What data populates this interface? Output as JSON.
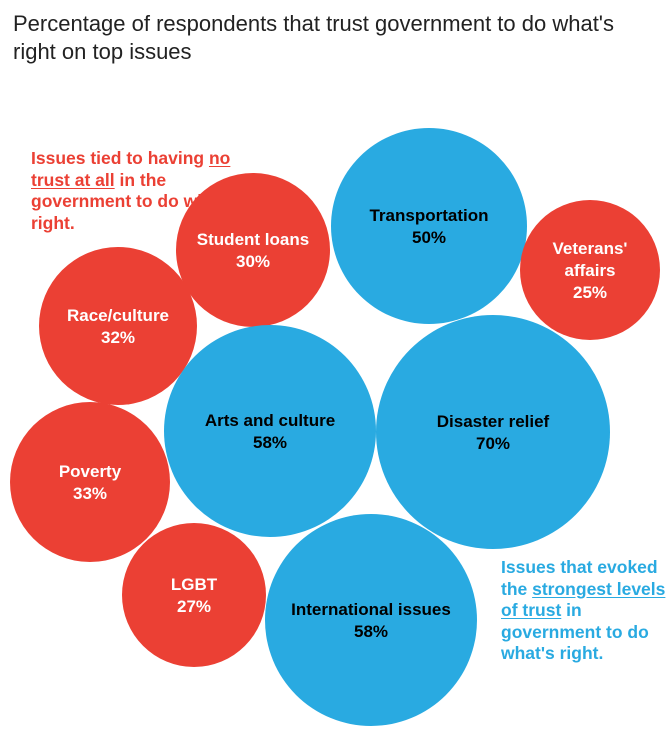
{
  "title": "Percentage of respondents that trust government to do what's right on top issues",
  "annotations": {
    "red_note": {
      "pre": "Issues tied to having ",
      "underlined": "no trust at all",
      "post": " in the government to do what's right."
    },
    "blue_note": {
      "pre": "Issues that evoked the ",
      "underlined": "strongest levels of trust",
      "post": " in government to do what's right."
    }
  },
  "colors": {
    "no_trust": "#eb4034",
    "strong_trust": "#29aae1",
    "label_on_red": "#ffffff",
    "label_on_blue": "#000000"
  },
  "chart_data": {
    "type": "bubble",
    "title": "Percentage of respondents that trust government to do what's right on top issues",
    "unit": "%",
    "legend": [
      {
        "group": "no_trust",
        "text": "Issues tied to having no trust at all in the government to do what's right.",
        "placement": "top-left"
      },
      {
        "group": "strong_trust",
        "text": "Issues that evoked the strongest levels of trust in government to do what's right.",
        "placement": "bottom-right"
      }
    ],
    "series": [
      {
        "name": "Transportation",
        "lines": [
          "Transportation"
        ],
        "value": 50,
        "group": "strong_trust"
      },
      {
        "name": "Student loans",
        "lines": [
          "Student loans"
        ],
        "value": 30,
        "group": "no_trust"
      },
      {
        "name": "Veterans' affairs",
        "lines": [
          "Veterans'",
          "affairs"
        ],
        "value": 25,
        "group": "no_trust"
      },
      {
        "name": "Race/culture",
        "lines": [
          "Race/culture"
        ],
        "value": 32,
        "group": "no_trust"
      },
      {
        "name": "Arts and culture",
        "lines": [
          "Arts and culture"
        ],
        "value": 58,
        "group": "strong_trust"
      },
      {
        "name": "Disaster relief",
        "lines": [
          "Disaster relief"
        ],
        "value": 70,
        "group": "strong_trust"
      },
      {
        "name": "Poverty",
        "lines": [
          "Poverty"
        ],
        "value": 33,
        "group": "no_trust"
      },
      {
        "name": "LGBT",
        "lines": [
          "LGBT"
        ],
        "value": 27,
        "group": "no_trust"
      },
      {
        "name": "International issues",
        "lines": [
          "International issues"
        ],
        "value": 58,
        "group": "strong_trust"
      }
    ]
  }
}
